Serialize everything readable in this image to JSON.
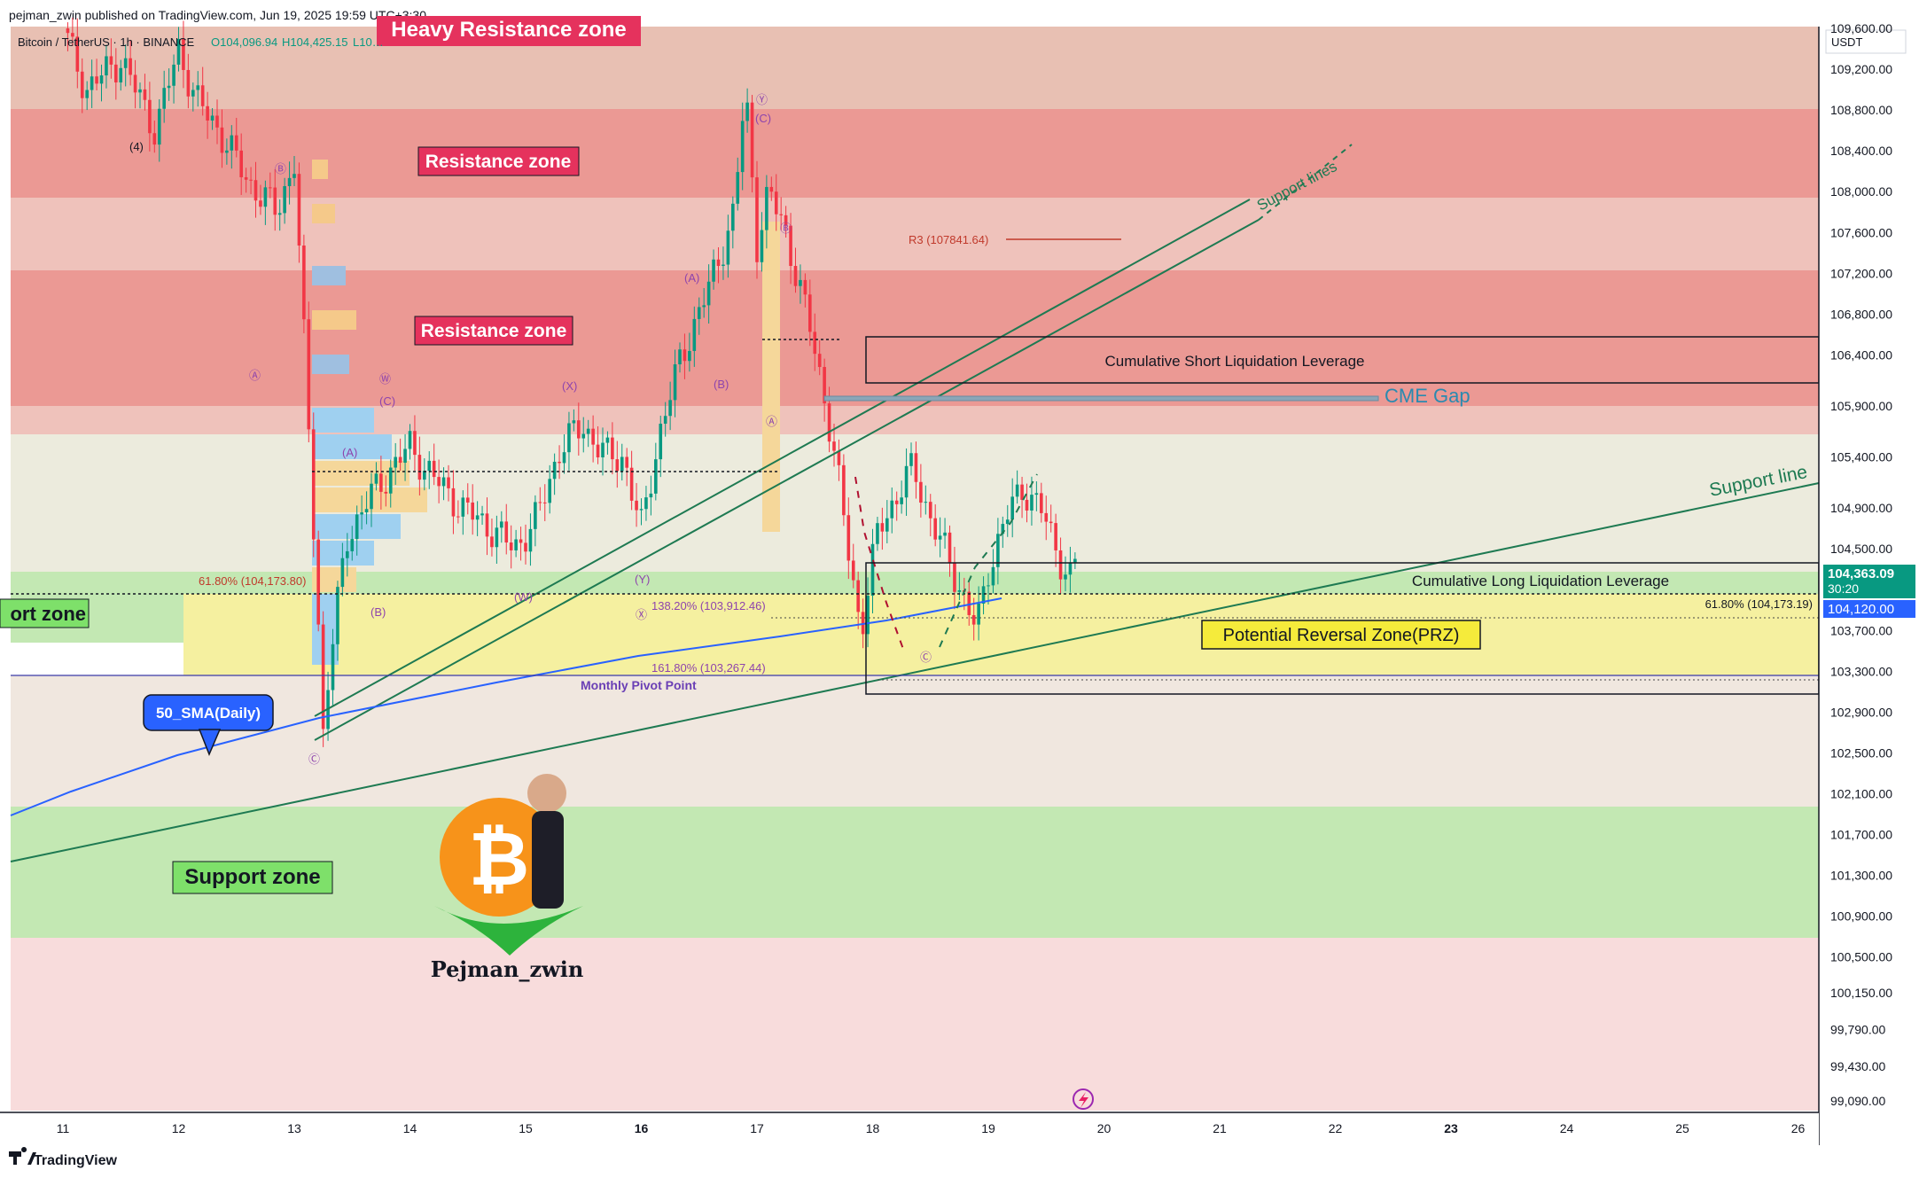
{
  "header": {
    "published": "pejman_zwin published on TradingView.com, Jun 19, 2025 19:59 UTC+3:30",
    "symbol_line": "Bitcoin / TetherUS · 1h · BINANCE",
    "open": "O104,096.94",
    "high": "H104,425.15",
    "low": "L10…"
  },
  "footer": {
    "brand": "TradingView"
  },
  "colors": {
    "heavy_resistance": "#e8c0b3",
    "resistance": "#eb9994",
    "resistance_light": "#efc2bb",
    "neutral": "#ecebdd",
    "support_green": "#c3e8b3",
    "prz_yellow": "#f5f0a0",
    "lower_pink": "#f8dcdc",
    "candle_up": "#089981",
    "candle_down": "#f23645",
    "sma": "#2962ff",
    "support_line": "#1e7a52",
    "label_red": "#e5325d"
  },
  "chart_data": {
    "type": "candlestick",
    "title": "",
    "symbol": "Bitcoin / TetherUS · 1h · BINANCE",
    "xlabel": "",
    "ylabel": "",
    "currency": "USDT",
    "ylim": [
      98900,
      110000
    ],
    "x_ticks": [
      "11",
      "12",
      "13",
      "14",
      "15",
      "16",
      "17",
      "18",
      "19",
      "20",
      "21",
      "22",
      "23",
      "24",
      "25",
      "26"
    ],
    "y_ticks": [
      109600,
      109200,
      108800,
      108400,
      108000,
      107600,
      107200,
      106800,
      106400,
      105900,
      105400,
      104900,
      104500,
      103700,
      103300,
      102900,
      102500,
      102100,
      101700,
      101300,
      100900,
      100500,
      100150,
      99790,
      99430,
      99090
    ],
    "y_tick_labels": [
      "109,600.00",
      "109,200.00",
      "108,800.00",
      "108,400.00",
      "108,000.00",
      "107,600.00",
      "107,200.00",
      "106,800.00",
      "106,400.00",
      "105,900.00",
      "105,400.00",
      "104,900.00",
      "104,500.00",
      "103,700.00",
      "103,300.00",
      "102,900.00",
      "102,500.00",
      "102,100.00",
      "101,700.00",
      "101,300.00",
      "100,900.00",
      "100,500.00",
      "100,150.00",
      "99,790.00",
      "99,430.00",
      "99,090.00"
    ],
    "last_price": {
      "value": 104363.09,
      "label": "104,363.09",
      "countdown": "30:20"
    },
    "marker_price": {
      "value": 104120,
      "label": "104,120.00"
    },
    "price_path": [
      [
        11.0,
        109600
      ],
      [
        11.2,
        109000
      ],
      [
        11.5,
        109300
      ],
      [
        11.8,
        108600
      ],
      [
        12.0,
        109400
      ],
      [
        12.15,
        108900
      ],
      [
        12.35,
        108600
      ],
      [
        12.6,
        108100
      ],
      [
        12.85,
        107800
      ],
      [
        13.0,
        108300
      ],
      [
        13.1,
        106200
      ],
      [
        13.2,
        104000
      ],
      [
        13.25,
        102700
      ],
      [
        13.3,
        103300
      ],
      [
        13.45,
        104600
      ],
      [
        13.65,
        105000
      ],
      [
        13.85,
        105300
      ],
      [
        14.0,
        105500
      ],
      [
        14.2,
        105200
      ],
      [
        14.45,
        104900
      ],
      [
        14.7,
        104700
      ],
      [
        14.9,
        104500
      ],
      [
        15.1,
        104800
      ],
      [
        15.3,
        105500
      ],
      [
        15.5,
        105700
      ],
      [
        15.7,
        105400
      ],
      [
        15.85,
        105400
      ],
      [
        15.95,
        104900
      ],
      [
        16.0,
        104700
      ],
      [
        16.15,
        105600
      ],
      [
        16.35,
        106400
      ],
      [
        16.6,
        107100
      ],
      [
        16.8,
        107800
      ],
      [
        16.9,
        109000
      ],
      [
        17.0,
        107500
      ],
      [
        17.1,
        108000
      ],
      [
        17.25,
        107600
      ],
      [
        17.45,
        106700
      ],
      [
        17.6,
        105900
      ],
      [
        17.7,
        105200
      ],
      [
        17.8,
        104400
      ],
      [
        17.9,
        103700
      ],
      [
        18.05,
        104700
      ],
      [
        18.2,
        105000
      ],
      [
        18.35,
        105300
      ],
      [
        18.5,
        104800
      ],
      [
        18.65,
        104400
      ],
      [
        18.8,
        104000
      ],
      [
        18.9,
        103700
      ],
      [
        19.0,
        104300
      ],
      [
        19.15,
        104800
      ],
      [
        19.3,
        105100
      ],
      [
        19.45,
        104900
      ],
      [
        19.55,
        104600
      ],
      [
        19.7,
        104200
      ],
      [
        19.75,
        104363
      ]
    ],
    "zones": [
      {
        "label": "Heavy Resistance zone",
        "from": 109200,
        "to": 110000
      },
      {
        "label": "Resistance zone",
        "from": 108300,
        "to": 109200
      },
      {
        "label": "Resistance zone",
        "from": 106050,
        "to": 107500
      },
      {
        "label": "Support zone",
        "from": 103600,
        "to": 104300
      },
      {
        "label": "Potential Reversal Zone(PRZ)",
        "from": 103280,
        "to": 104000
      },
      {
        "label": "Support zone",
        "from": 100600,
        "to": 102000
      }
    ],
    "boxes": [
      {
        "label": "Cumulative Short Liquidation Leverage",
        "from": 106300,
        "to": 106750
      },
      {
        "label": "Cumulative Long Liquidation Leverage",
        "from": 103100,
        "to": 104500
      }
    ],
    "levels": [
      {
        "label": "R3 (107841.64)",
        "value": 107842
      },
      {
        "label": "61.80% (104,173.80)",
        "value": 104174
      },
      {
        "label": "138.20% (103,912.46)",
        "value": 103912
      },
      {
        "label": "161.80% (103,267.44)",
        "value": 103267
      },
      {
        "label": "61.80% (104,173.19)",
        "value": 104173
      },
      {
        "label": "Monthly Pivot Point",
        "value": 103267
      },
      {
        "label": "CME Gap",
        "value": 106150
      }
    ],
    "annotations": {
      "sma": "50_SMA(Daily)",
      "support_line": "Support line",
      "support_lines": "Support lines",
      "author": "Pejman_zwin",
      "cme_gap": "CME Gap",
      "wave_labels": [
        "(4)",
        "Ⓑ",
        "Ⓐ",
        "Ⓦ",
        "(C)",
        "(A)",
        "(B)",
        "Ⓒ",
        "(X)",
        "(Y)",
        "Ⓧ",
        "Ⓨ",
        "Ⓐ",
        "Ⓑ",
        "Ⓒ",
        "(W)"
      ]
    }
  }
}
